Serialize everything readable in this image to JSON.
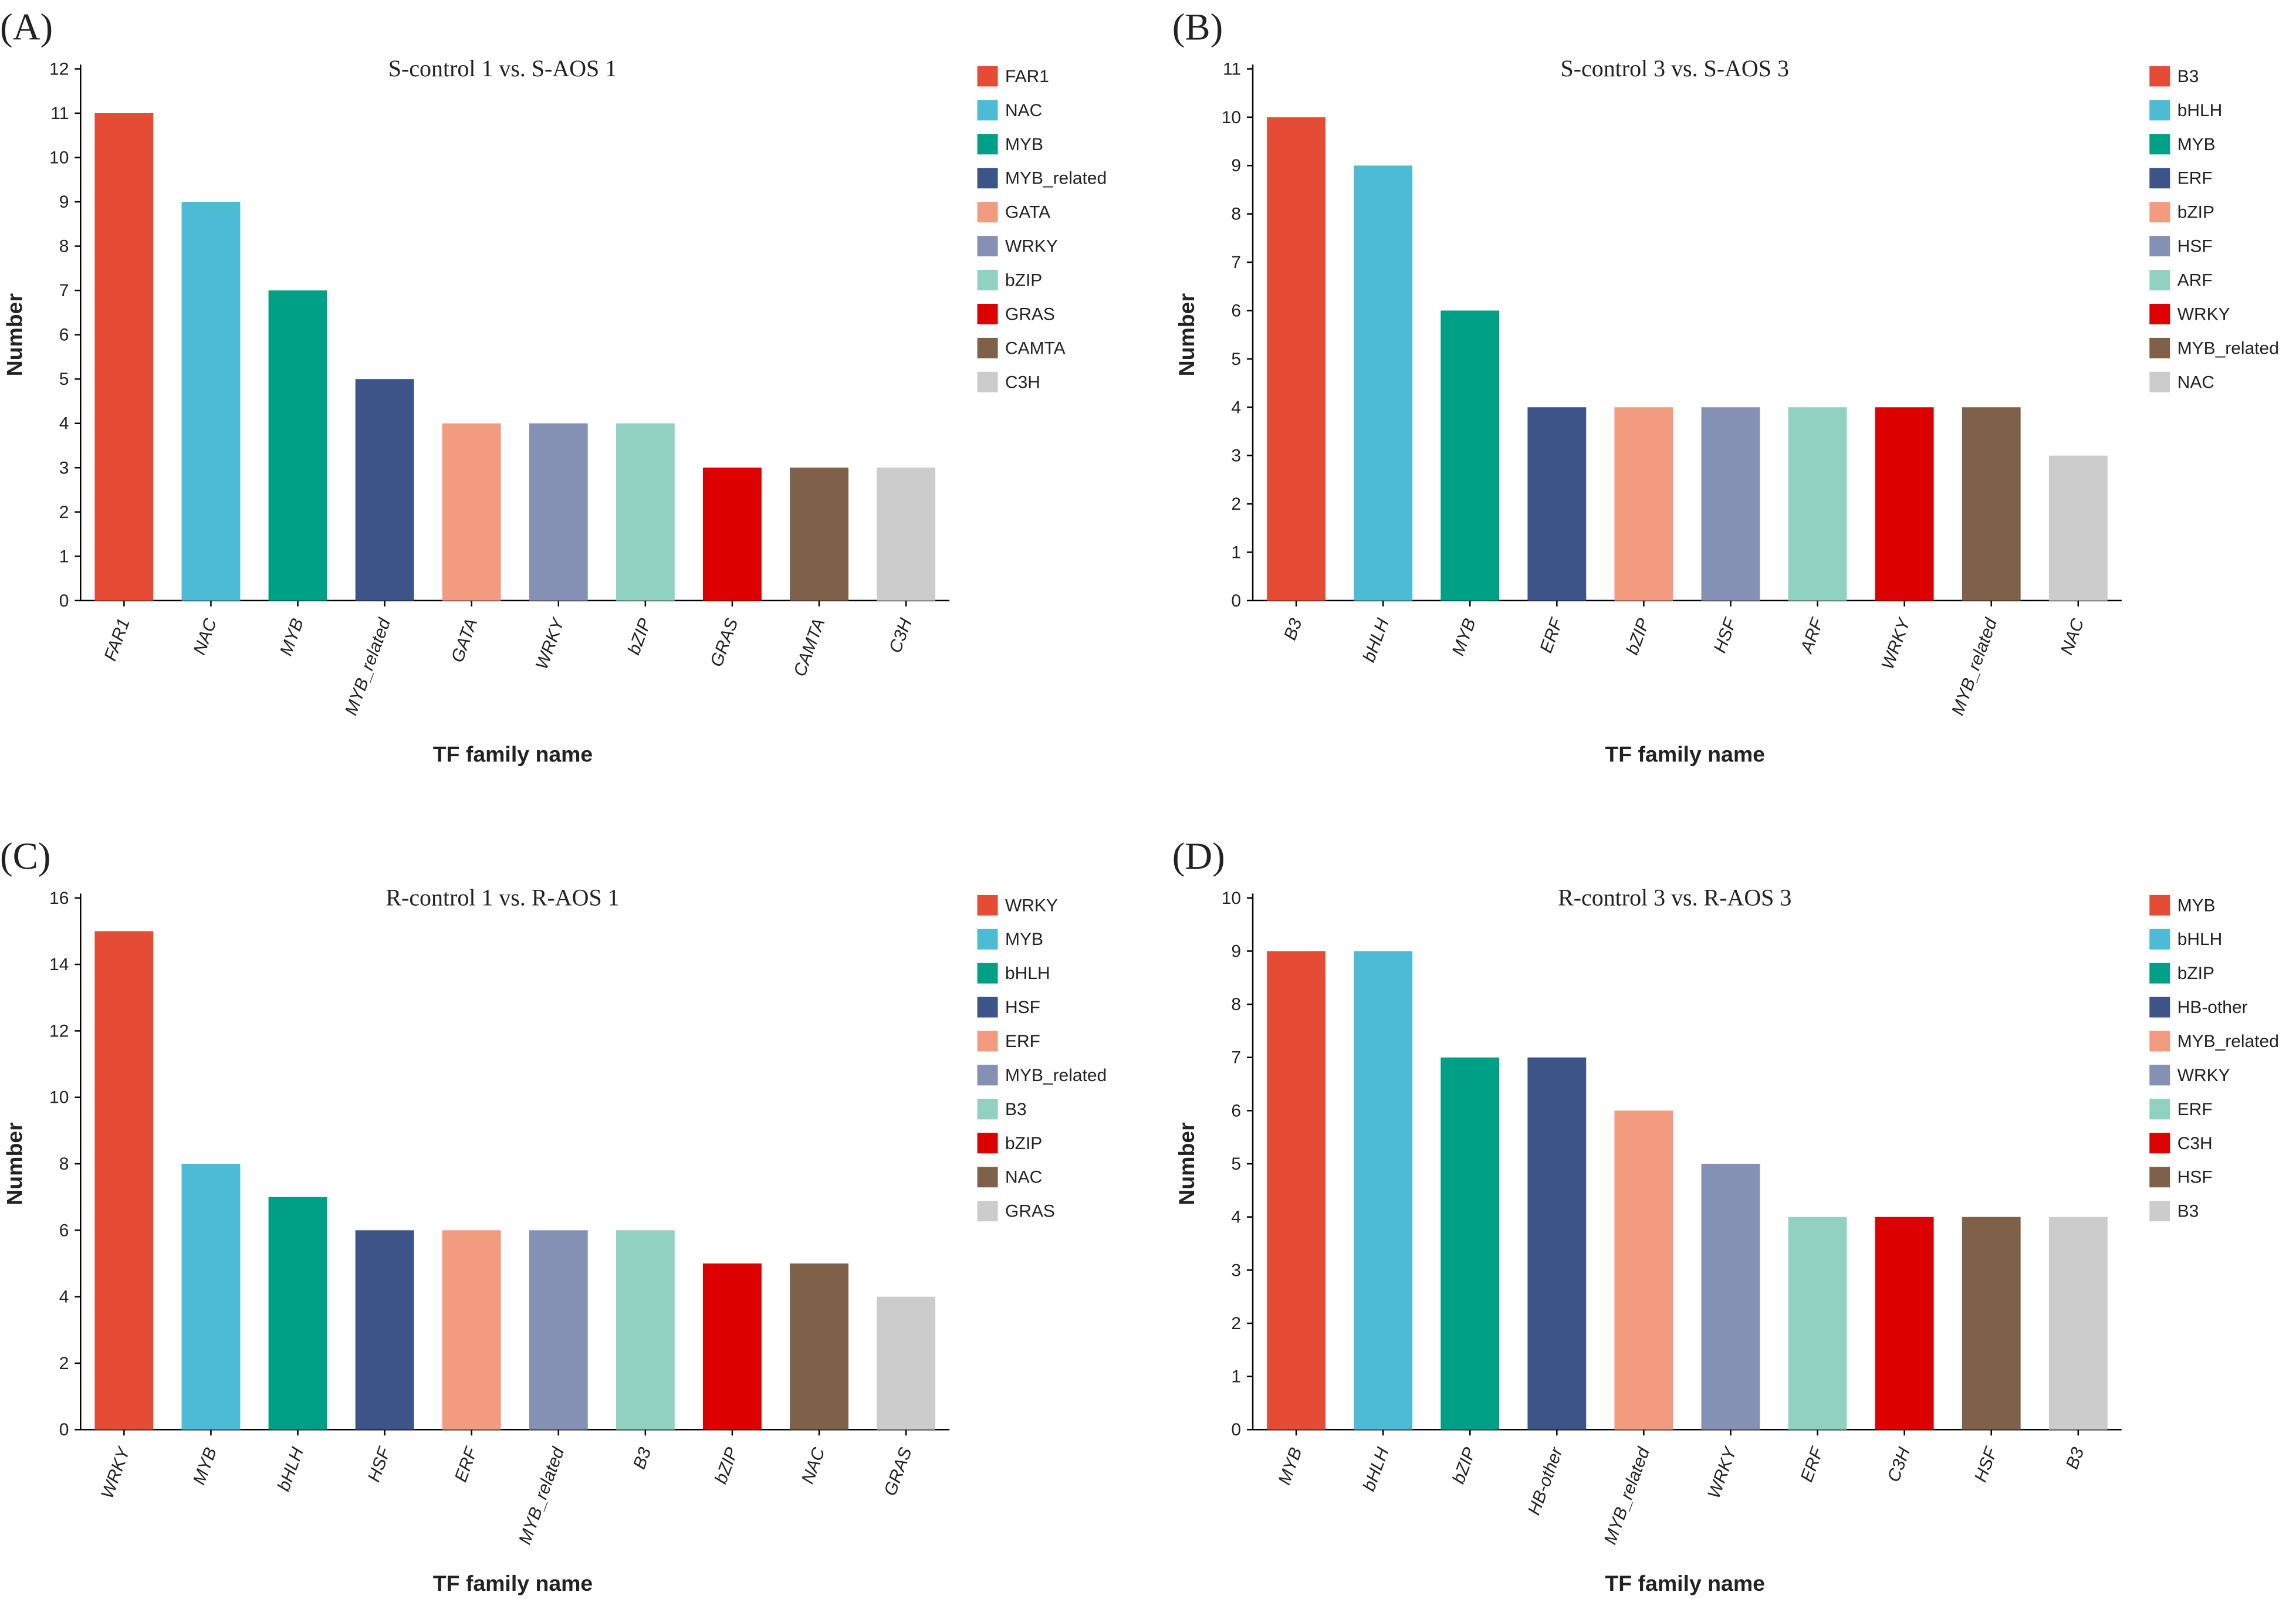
{
  "chart_data": [
    {
      "type": "bar",
      "panel": "(A)",
      "title": "S-control 1 vs. S-AOS 1",
      "xlabel": "TF family name",
      "ylabel": "Number",
      "categories": [
        "FAR1",
        "NAC",
        "MYB",
        "MYB_related",
        "GATA",
        "WRKY",
        "bZIP",
        "GRAS",
        "CAMTA",
        "C3H"
      ],
      "values": [
        11,
        9,
        7,
        5,
        4,
        4,
        4,
        3,
        3,
        3
      ],
      "colors": [
        "#e64b35",
        "#4dbbd5",
        "#00a087",
        "#3c5488",
        "#f39b7f",
        "#8491b4",
        "#91d1c2",
        "#dc0000",
        "#7e6148",
        "#cccccc"
      ],
      "ylim": [
        0,
        12
      ],
      "yticks": [
        0,
        1,
        2,
        3,
        4,
        5,
        6,
        7,
        8,
        9,
        10,
        11,
        12
      ]
    },
    {
      "type": "bar",
      "panel": "(B)",
      "title": "S-control 3 vs. S-AOS 3",
      "xlabel": "TF family name",
      "ylabel": "Number",
      "categories": [
        "B3",
        "bHLH",
        "MYB",
        "ERF",
        "bZIP",
        "HSF",
        "ARF",
        "WRKY",
        "MYB_related",
        "NAC"
      ],
      "values": [
        10,
        9,
        6,
        4,
        4,
        4,
        4,
        4,
        4,
        3
      ],
      "colors": [
        "#e64b35",
        "#4dbbd5",
        "#00a087",
        "#3c5488",
        "#f39b7f",
        "#8491b4",
        "#91d1c2",
        "#dc0000",
        "#7e6148",
        "#cccccc"
      ],
      "ylim": [
        0,
        11
      ],
      "yticks": [
        0,
        1,
        2,
        3,
        4,
        5,
        6,
        7,
        8,
        9,
        10,
        11
      ]
    },
    {
      "type": "bar",
      "panel": "(C)",
      "title": "R-control 1 vs. R-AOS 1",
      "xlabel": "TF family name",
      "ylabel": "Number",
      "categories": [
        "WRKY",
        "MYB",
        "bHLH",
        "HSF",
        "ERF",
        "MYB_related",
        "B3",
        "bZIP",
        "NAC",
        "GRAS"
      ],
      "values": [
        15,
        8,
        7,
        6,
        6,
        6,
        6,
        5,
        5,
        4
      ],
      "colors": [
        "#e64b35",
        "#4dbbd5",
        "#00a087",
        "#3c5488",
        "#f39b7f",
        "#8491b4",
        "#91d1c2",
        "#dc0000",
        "#7e6148",
        "#cccccc"
      ],
      "ylim": [
        0,
        16
      ],
      "yticks": [
        0,
        2,
        4,
        6,
        8,
        10,
        12,
        14,
        16
      ]
    },
    {
      "type": "bar",
      "panel": "(D)",
      "title": "R-control 3 vs. R-AOS 3",
      "xlabel": "TF family name",
      "ylabel": "Number",
      "categories": [
        "MYB",
        "bHLH",
        "bZIP",
        "HB-other",
        "MYB_related",
        "WRKY",
        "ERF",
        "C3H",
        "HSF",
        "B3"
      ],
      "values": [
        9,
        9,
        7,
        7,
        6,
        5,
        4,
        4,
        4,
        4
      ],
      "colors": [
        "#e64b35",
        "#4dbbd5",
        "#00a087",
        "#3c5488",
        "#f39b7f",
        "#8491b4",
        "#91d1c2",
        "#dc0000",
        "#7e6148",
        "#cccccc"
      ],
      "ylim": [
        0,
        10
      ],
      "yticks": [
        0,
        1,
        2,
        3,
        4,
        5,
        6,
        7,
        8,
        9,
        10
      ]
    }
  ]
}
